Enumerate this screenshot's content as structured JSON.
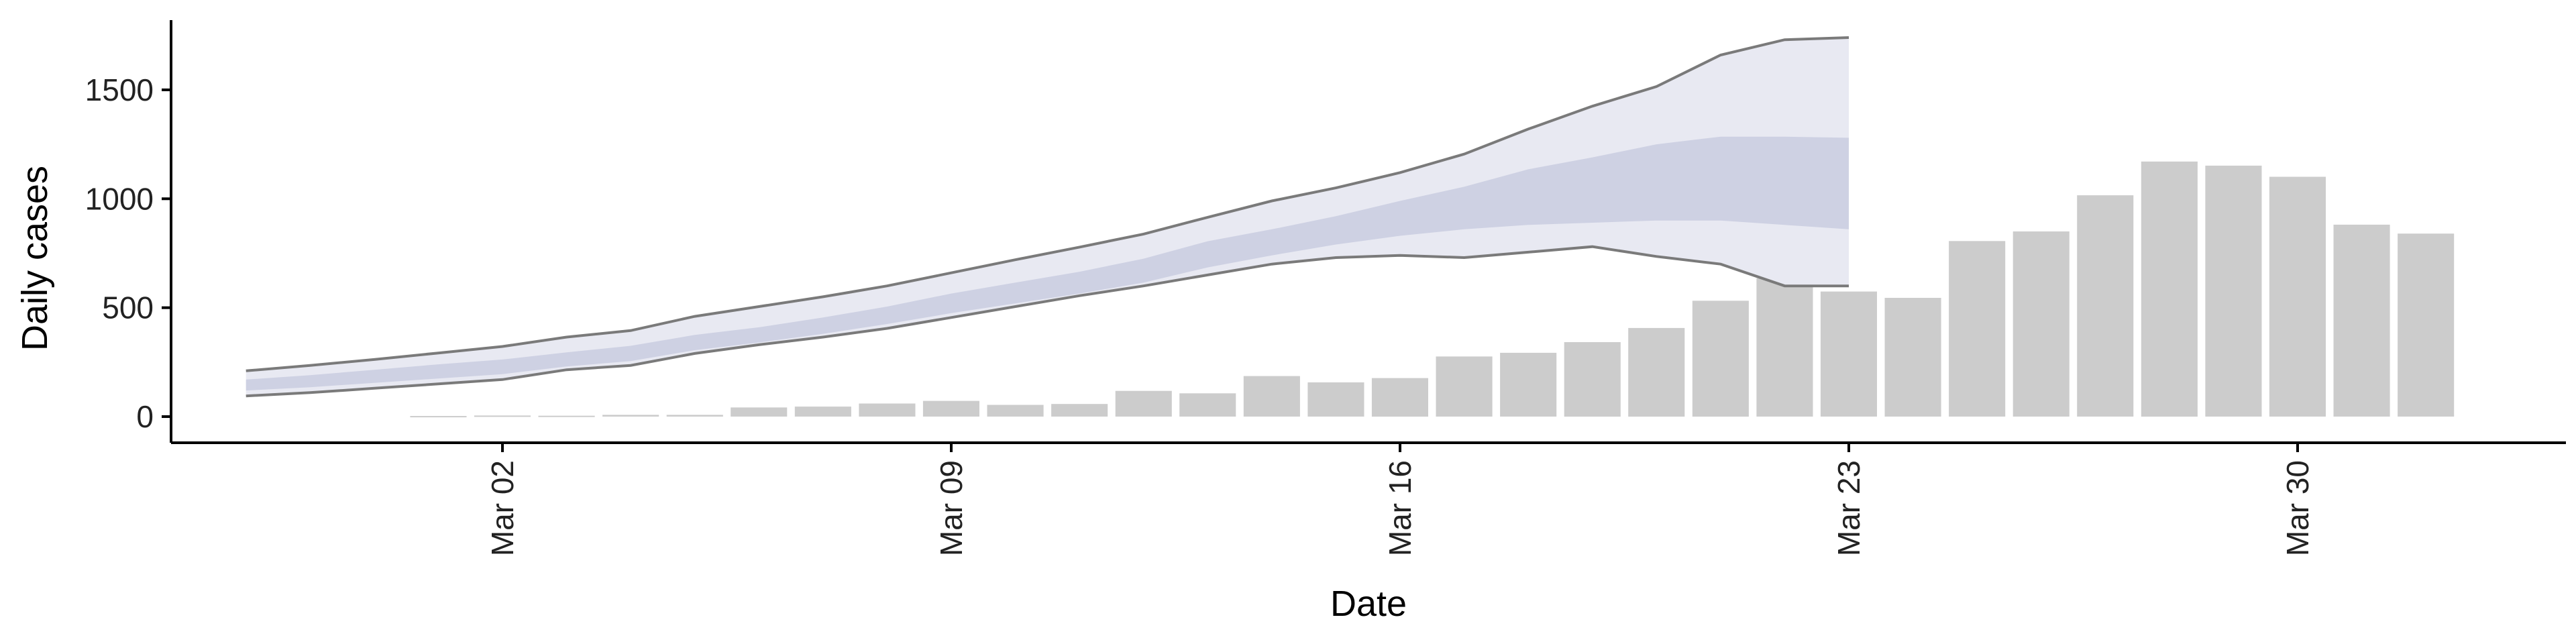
{
  "chart_data": {
    "type": "bar",
    "xlabel": "Date",
    "ylabel": "Daily cases",
    "x_ticks": [
      "Mar 02",
      "Mar 09",
      "Mar 16",
      "Mar 23",
      "Mar 30"
    ],
    "y_ticks": [
      0,
      500,
      1000,
      1500
    ],
    "ylim": [
      -120,
      1820
    ],
    "grid": false,
    "colors": {
      "bars": "#cccccc",
      "band_outer_fill": "#e8e9f2",
      "band_inner_fill": "#c9cde0",
      "bound_line": "#7a7a7a",
      "axis": "#000000"
    },
    "observed": {
      "dates": [
        "2020-03-01",
        "2020-03-02",
        "2020-03-03",
        "2020-03-04",
        "2020-03-05",
        "2020-03-06",
        "2020-03-07",
        "2020-03-08",
        "2020-03-09",
        "2020-03-10",
        "2020-03-11",
        "2020-03-12",
        "2020-03-13",
        "2020-03-14",
        "2020-03-15",
        "2020-03-16",
        "2020-03-17",
        "2020-03-18",
        "2020-03-19",
        "2020-03-20",
        "2020-03-21",
        "2020-03-22",
        "2020-03-23",
        "2020-03-24",
        "2020-03-25",
        "2020-03-26",
        "2020-03-27",
        "2020-03-28",
        "2020-03-29",
        "2020-03-30",
        "2020-03-31",
        "2020-04-01"
      ],
      "values": [
        3,
        5,
        4,
        8,
        8,
        42,
        46,
        60,
        72,
        54,
        58,
        118,
        107,
        186,
        157,
        177,
        276,
        293,
        342,
        407,
        532,
        635,
        574,
        545,
        806,
        850,
        1016,
        1171,
        1152,
        1101,
        881,
        840
      ]
    },
    "estimate": {
      "dates": [
        "2020-02-27",
        "2020-02-28",
        "2020-02-29",
        "2020-03-01",
        "2020-03-02",
        "2020-03-03",
        "2020-03-04",
        "2020-03-05",
        "2020-03-06",
        "2020-03-07",
        "2020-03-08",
        "2020-03-09",
        "2020-03-10",
        "2020-03-11",
        "2020-03-12",
        "2020-03-13",
        "2020-03-14",
        "2020-03-15",
        "2020-03-16",
        "2020-03-17",
        "2020-03-18",
        "2020-03-19",
        "2020-03-20",
        "2020-03-21",
        "2020-03-22",
        "2020-03-23"
      ],
      "upper_90": [
        210,
        235,
        262,
        292,
        322,
        365,
        395,
        460,
        505,
        550,
        600,
        660,
        720,
        778,
        838,
        915,
        990,
        1050,
        1120,
        1205,
        1320,
        1425,
        1515,
        1660,
        1730,
        1740
      ],
      "upper_50": [
        170,
        190,
        215,
        240,
        262,
        295,
        325,
        375,
        410,
        455,
        505,
        565,
        615,
        665,
        725,
        805,
        860,
        920,
        990,
        1055,
        1135,
        1190,
        1250,
        1285,
        1285,
        1280
      ],
      "lower_50": [
        120,
        135,
        155,
        175,
        195,
        230,
        255,
        305,
        340,
        380,
        425,
        475,
        520,
        565,
        615,
        685,
        740,
        790,
        830,
        860,
        880,
        890,
        900,
        900,
        880,
        860
      ],
      "lower_90": [
        95,
        110,
        130,
        150,
        170,
        215,
        235,
        290,
        330,
        365,
        405,
        455,
        505,
        555,
        600,
        650,
        700,
        730,
        740,
        730,
        755,
        780,
        735,
        700,
        600,
        600
      ]
    }
  }
}
